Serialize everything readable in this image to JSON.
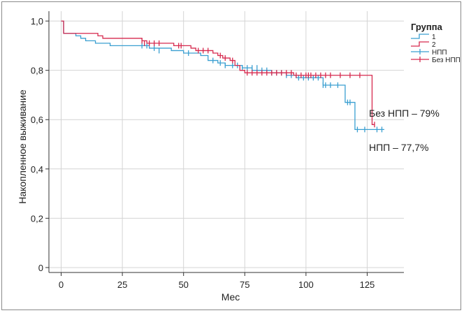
{
  "chart_data": {
    "type": "line",
    "subtype": "kaplan-meier",
    "xlabel": "Мес",
    "ylabel": "Накопленное выживание",
    "xlim": [
      -5,
      140
    ],
    "ylim": [
      -0.02,
      1.04
    ],
    "x_ticks": [
      0,
      25,
      50,
      75,
      100,
      125
    ],
    "x_tick_labels": [
      "0",
      "25",
      "50",
      "75",
      "100",
      "125"
    ],
    "y_ticks": [
      0,
      0.2,
      0.4,
      0.6,
      0.8,
      1.0
    ],
    "y_tick_labels": [
      "0",
      "0,2",
      "0,4",
      "0,6",
      "0,8",
      "1,0"
    ],
    "grid": true,
    "legend": {
      "title": "Группа",
      "position": "top-right",
      "entries": [
        {
          "label": "1",
          "symbol": "step",
          "color": "#3a9fd1"
        },
        {
          "label": "2",
          "symbol": "step",
          "color": "#d6294e"
        },
        {
          "label": "НПП",
          "symbol": "censor",
          "color": "#3a9fd1"
        },
        {
          "label": "Без НПП",
          "symbol": "censor",
          "color": "#d6294e"
        }
      ]
    },
    "series": [
      {
        "name": "1",
        "color": "#3a9fd1",
        "steps": [
          [
            0,
            1.0
          ],
          [
            1,
            0.95
          ],
          [
            6,
            0.94
          ],
          [
            8,
            0.93
          ],
          [
            10,
            0.92
          ],
          [
            14,
            0.91
          ],
          [
            20,
            0.9
          ],
          [
            33,
            0.9
          ],
          [
            36,
            0.89
          ],
          [
            45,
            0.88
          ],
          [
            50,
            0.87
          ],
          [
            57,
            0.86
          ],
          [
            60,
            0.84
          ],
          [
            64,
            0.83
          ],
          [
            67,
            0.82
          ],
          [
            70,
            0.82
          ],
          [
            74,
            0.81
          ],
          [
            78,
            0.8
          ],
          [
            86,
            0.79
          ],
          [
            92,
            0.78
          ],
          [
            96,
            0.77
          ],
          [
            107,
            0.74
          ],
          [
            114,
            0.74
          ],
          [
            116,
            0.67
          ],
          [
            120,
            0.56
          ],
          [
            132,
            0.56
          ]
        ],
        "censored": [
          [
            33,
            0.9
          ],
          [
            35,
            0.9
          ],
          [
            38,
            0.89
          ],
          [
            40,
            0.88
          ],
          [
            52,
            0.87
          ],
          [
            62,
            0.84
          ],
          [
            65,
            0.83
          ],
          [
            67,
            0.82
          ],
          [
            70,
            0.82
          ],
          [
            72,
            0.82
          ],
          [
            74,
            0.81
          ],
          [
            76,
            0.81
          ],
          [
            78,
            0.81
          ],
          [
            80,
            0.81
          ],
          [
            82,
            0.8
          ],
          [
            84,
            0.8
          ],
          [
            86,
            0.79
          ],
          [
            88,
            0.79
          ],
          [
            90,
            0.79
          ],
          [
            92,
            0.78
          ],
          [
            94,
            0.78
          ],
          [
            97,
            0.77
          ],
          [
            99,
            0.77
          ],
          [
            101,
            0.77
          ],
          [
            103,
            0.77
          ],
          [
            105,
            0.77
          ],
          [
            107,
            0.74
          ],
          [
            108,
            0.74
          ],
          [
            110,
            0.74
          ],
          [
            113,
            0.74
          ],
          [
            117,
            0.67
          ],
          [
            118,
            0.67
          ],
          [
            121,
            0.56
          ],
          [
            124,
            0.56
          ],
          [
            129,
            0.56
          ],
          [
            131,
            0.56
          ]
        ]
      },
      {
        "name": "2",
        "color": "#d6294e",
        "steps": [
          [
            0,
            1.0
          ],
          [
            1,
            0.95
          ],
          [
            15,
            0.94
          ],
          [
            17,
            0.93
          ],
          [
            33,
            0.92
          ],
          [
            35,
            0.91
          ],
          [
            46,
            0.9
          ],
          [
            53,
            0.89
          ],
          [
            55,
            0.88
          ],
          [
            62,
            0.87
          ],
          [
            64,
            0.86
          ],
          [
            66,
            0.85
          ],
          [
            69,
            0.84
          ],
          [
            71,
            0.82
          ],
          [
            73,
            0.8
          ],
          [
            75,
            0.79
          ],
          [
            95,
            0.78
          ],
          [
            127,
            0.58
          ],
          [
            128,
            0.58
          ]
        ],
        "censored": [
          [
            33,
            0.92
          ],
          [
            34,
            0.91
          ],
          [
            36,
            0.91
          ],
          [
            38,
            0.91
          ],
          [
            40,
            0.91
          ],
          [
            48,
            0.9
          ],
          [
            49,
            0.9
          ],
          [
            56,
            0.88
          ],
          [
            58,
            0.88
          ],
          [
            60,
            0.88
          ],
          [
            65,
            0.86
          ],
          [
            67,
            0.85
          ],
          [
            70,
            0.84
          ],
          [
            76,
            0.79
          ],
          [
            78,
            0.79
          ],
          [
            80,
            0.79
          ],
          [
            82,
            0.79
          ],
          [
            84,
            0.79
          ],
          [
            86,
            0.79
          ],
          [
            88,
            0.79
          ],
          [
            90,
            0.79
          ],
          [
            92,
            0.79
          ],
          [
            94,
            0.79
          ],
          [
            96,
            0.78
          ],
          [
            98,
            0.78
          ],
          [
            100,
            0.78
          ],
          [
            101,
            0.78
          ],
          [
            102,
            0.78
          ],
          [
            104,
            0.78
          ],
          [
            106,
            0.78
          ],
          [
            108,
            0.78
          ],
          [
            110,
            0.78
          ],
          [
            114,
            0.78
          ],
          [
            118,
            0.78
          ],
          [
            122,
            0.78
          ],
          [
            128,
            0.58
          ]
        ]
      }
    ],
    "annotations": [
      {
        "text": "Без НПП – 79%",
        "x": 129,
        "y": 0.627
      },
      {
        "text": "НПП – 77,7%",
        "x": 129,
        "y": 0.486
      }
    ]
  }
}
